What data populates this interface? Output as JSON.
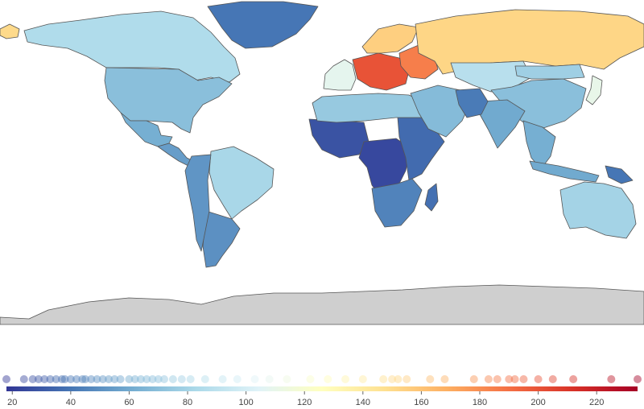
{
  "map": {
    "ocean_color": "#ffffff",
    "no_data_color": "#cfcfcf",
    "border_color": "#555555"
  },
  "colorbar": {
    "ticks": [
      20,
      40,
      60,
      80,
      100,
      120,
      140,
      160,
      180,
      200,
      220
    ],
    "range": [
      18,
      234
    ],
    "colors": [
      "#313695",
      "#4575b4",
      "#74add1",
      "#abd9e9",
      "#e0f3f8",
      "#ffffbf",
      "#fee090",
      "#fdae61",
      "#f46d43",
      "#d73027",
      "#a50026"
    ]
  },
  "chart_data": {
    "type": "choropleth",
    "strip_values": [
      18,
      24,
      27,
      29,
      31,
      33,
      35,
      37,
      38,
      40,
      42,
      44,
      45,
      47,
      49,
      51,
      53,
      55,
      57,
      60,
      62,
      64,
      66,
      68,
      70,
      72,
      75,
      78,
      81,
      86,
      92,
      97,
      103,
      108,
      114,
      122,
      128,
      134,
      140,
      147,
      150,
      152,
      155,
      163,
      168,
      178,
      183,
      186,
      190,
      192,
      195,
      200,
      205,
      212,
      225,
      234
    ],
    "regions": [
      {
        "region": "Greenland",
        "value": 40
      },
      {
        "region": "Alaska",
        "value": 150
      },
      {
        "region": "Canada",
        "value": 85
      },
      {
        "region": "United States",
        "value": 70
      },
      {
        "region": "Mexico",
        "value": 62
      },
      {
        "region": "Central America",
        "value": 55
      },
      {
        "region": "Brazil",
        "value": 82
      },
      {
        "region": "Argentina",
        "value": 50
      },
      {
        "region": "Western South America",
        "value": 52
      },
      {
        "region": "West Africa",
        "value": 28
      },
      {
        "region": "Central Africa",
        "value": 24
      },
      {
        "region": "East Africa",
        "value": 36
      },
      {
        "region": "Southern Africa",
        "value": 45
      },
      {
        "region": "Madagascar",
        "value": 38
      },
      {
        "region": "North Africa",
        "value": 75
      },
      {
        "region": "Western Europe",
        "value": 108
      },
      {
        "region": "Central Europe",
        "value": 200
      },
      {
        "region": "Eastern Europe",
        "value": 185
      },
      {
        "region": "Scandinavia",
        "value": 155
      },
      {
        "region": "Russia",
        "value": 152
      },
      {
        "region": "Middle East",
        "value": 68
      },
      {
        "region": "Kazakhstan",
        "value": 88
      },
      {
        "region": "China",
        "value": 70
      },
      {
        "region": "India",
        "value": 60
      },
      {
        "region": "Pakistan and Afghanistan",
        "value": 42
      },
      {
        "region": "Southeast Asia",
        "value": 62
      },
      {
        "region": "Indonesia",
        "value": 60
      },
      {
        "region": "Papua New Guinea",
        "value": 40
      },
      {
        "region": "Australia",
        "value": 80
      },
      {
        "region": "Japan",
        "value": 110
      },
      {
        "region": "Mongolia",
        "value": 78
      },
      {
        "region": "Antarctica",
        "value": null
      }
    ]
  }
}
